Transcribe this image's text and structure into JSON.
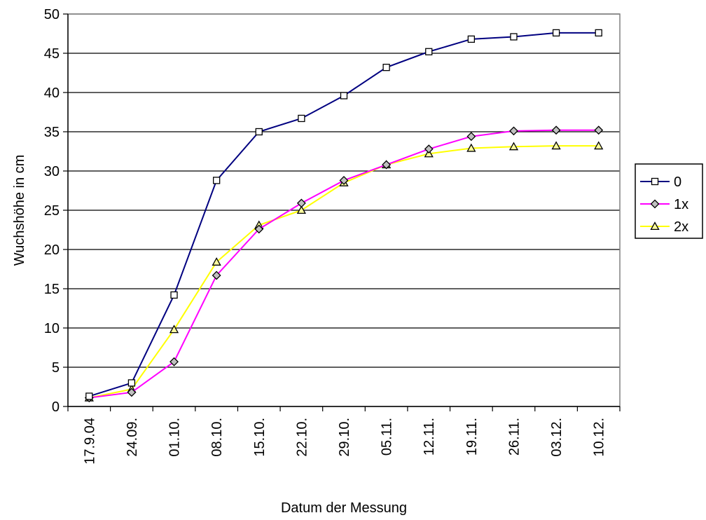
{
  "chart_data": {
    "type": "line",
    "title": "",
    "xlabel": "Datum der Messung",
    "ylabel": "Wuchshöhe in cm",
    "categories": [
      "17.9.04",
      "24.09.",
      "01.10.",
      "08.10.",
      "15.10.",
      "22.10.",
      "29.10.",
      "05.11.",
      "12.11.",
      "19.11.",
      "26.11.",
      "03.12.",
      "10.12."
    ],
    "y_ticks": [
      "0",
      "5",
      "10",
      "15",
      "20",
      "25",
      "30",
      "35",
      "40",
      "45",
      "50"
    ],
    "ylim": [
      0,
      50
    ],
    "grid": "horizontal",
    "legend_position": "right",
    "series": [
      {
        "name": "0",
        "marker": "square",
        "color": "#000080",
        "values": [
          1.3,
          3.0,
          14.2,
          28.8,
          35.0,
          36.7,
          39.6,
          43.2,
          45.2,
          46.8,
          47.1,
          47.6,
          47.6
        ]
      },
      {
        "name": "1x",
        "marker": "diamond",
        "color": "#ff00ff",
        "values": [
          1.1,
          1.8,
          5.7,
          16.7,
          22.6,
          25.9,
          28.8,
          30.8,
          32.8,
          34.4,
          35.1,
          35.2,
          35.2
        ]
      },
      {
        "name": "2x",
        "marker": "triangle",
        "color": "#ffff00",
        "values": [
          1.1,
          2.2,
          9.8,
          18.4,
          23.1,
          25.0,
          28.5,
          30.8,
          32.2,
          32.9,
          33.1,
          33.2,
          33.2
        ]
      }
    ]
  }
}
